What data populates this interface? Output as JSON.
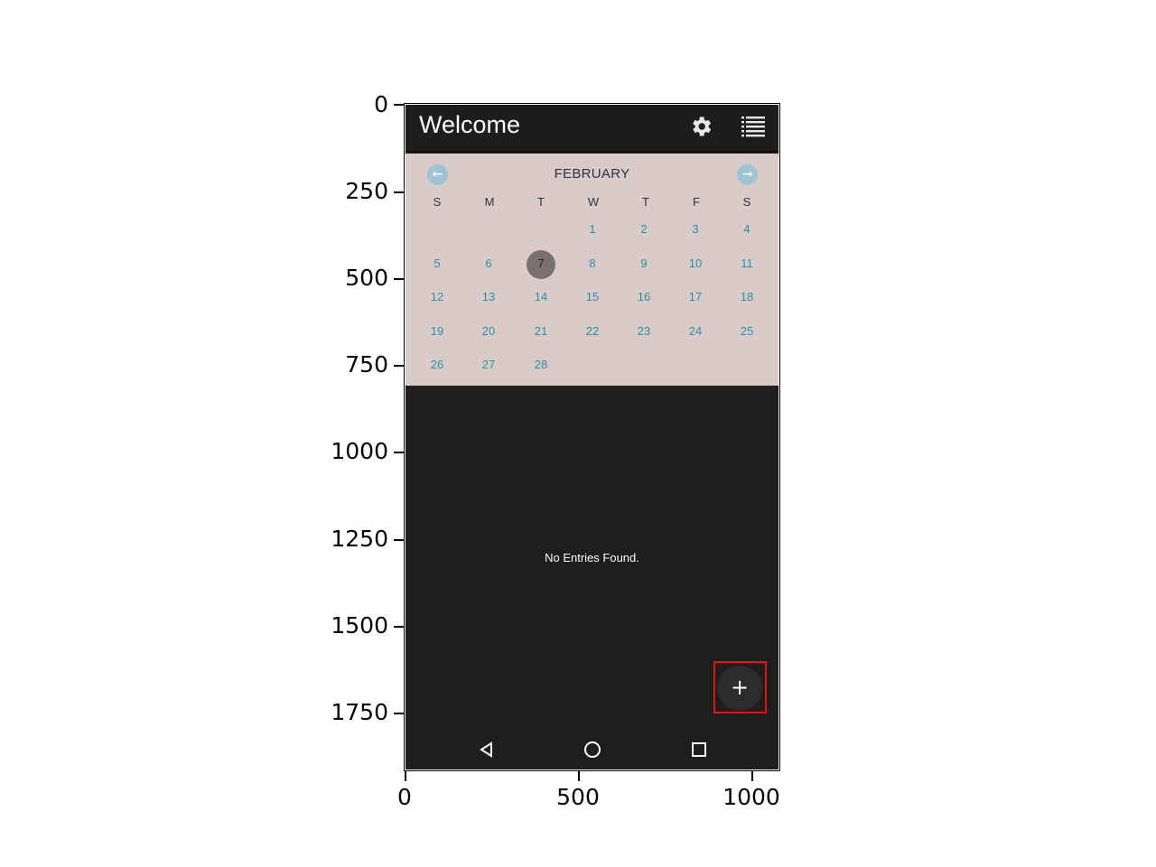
{
  "app": {
    "title": "Welcome",
    "settings_icon": "gear-icon",
    "list_icon": "list-icon"
  },
  "calendar": {
    "month": "FEBRUARY",
    "prev_icon": "arrow-left-icon",
    "next_icon": "arrow-right-icon",
    "weekdays": [
      "S",
      "M",
      "T",
      "W",
      "T",
      "F",
      "S"
    ],
    "selected_day": "7",
    "weeks": [
      [
        "",
        "",
        "",
        "1",
        "2",
        "3",
        "4"
      ],
      [
        "5",
        "6",
        "7",
        "8",
        "9",
        "10",
        "11"
      ],
      [
        "12",
        "13",
        "14",
        "15",
        "16",
        "17",
        "18"
      ],
      [
        "19",
        "20",
        "21",
        "22",
        "23",
        "24",
        "25"
      ],
      [
        "26",
        "27",
        "28",
        "",
        "",
        "",
        ""
      ]
    ]
  },
  "entries": {
    "empty_message": "No Entries Found."
  },
  "fab": {
    "label": "+"
  },
  "system_nav": {
    "back": "back-triangle-icon",
    "home": "home-circle-icon",
    "recents": "recents-square-icon"
  },
  "axes": {
    "y_ticks": [
      "0",
      "250",
      "500",
      "750",
      "1000",
      "1250",
      "1500",
      "1750"
    ],
    "x_ticks": [
      "0",
      "500",
      "1000"
    ]
  },
  "colors": {
    "screen_bg": "#1e1e1e",
    "calendar_bg": "#d8cbc8",
    "day_text": "#2b8fa7",
    "selected_circle": "#7a7070",
    "highlight_box": "#e3140f"
  }
}
